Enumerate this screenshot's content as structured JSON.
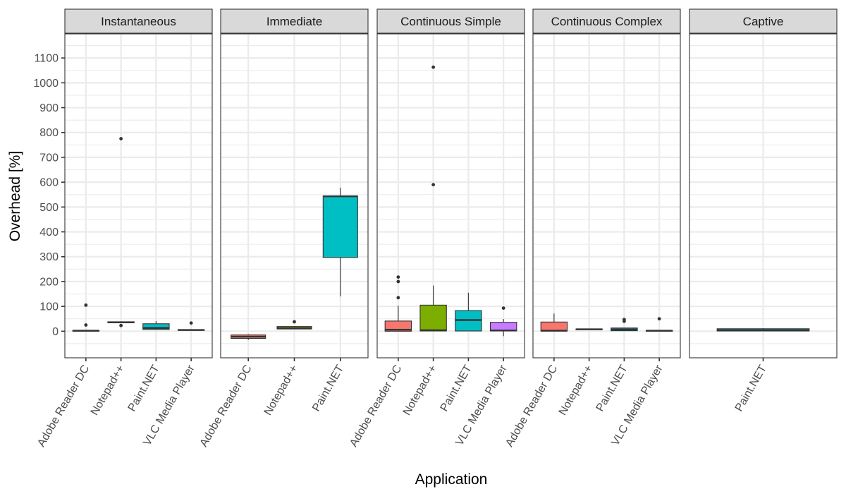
{
  "chart_data": {
    "type": "box",
    "xlabel": "Application",
    "ylabel": "Overhead [%]",
    "ylim": [
      -107,
      1197
    ],
    "yticks": [
      0,
      100,
      200,
      300,
      400,
      500,
      600,
      700,
      800,
      900,
      1000,
      1100
    ],
    "grid": true,
    "legend": "none",
    "colors": {
      "Adobe Reader DC": "#F8766D",
      "Notepad++": "#7CAE00",
      "Paint.NET": "#00BFC4",
      "VLC Media Player": "#C77CFF"
    },
    "panels": [
      {
        "title": "Instantaneous",
        "categories": [
          "Adobe Reader DC",
          "Notepad++",
          "Paint.NET",
          "VLC Media Player"
        ],
        "boxes": [
          {
            "category": "Adobe Reader DC",
            "lower": 1,
            "q1": 1,
            "median": 2,
            "q3": 3,
            "upper": 4,
            "outliers": [
              105,
              25
            ]
          },
          {
            "category": "Notepad++",
            "lower": 33,
            "q1": 34,
            "median": 36,
            "q3": 38,
            "upper": 40,
            "outliers": [
              775,
              23
            ]
          },
          {
            "category": "Paint.NET",
            "lower": 5,
            "q1": 7,
            "median": 13,
            "q3": 30,
            "upper": 41,
            "outliers": []
          },
          {
            "category": "VLC Media Player",
            "lower": 3,
            "q1": 4,
            "median": 5,
            "q3": 6,
            "upper": 7,
            "outliers": [
              33
            ]
          }
        ]
      },
      {
        "title": "Immediate",
        "categories": [
          "Adobe Reader DC",
          "Notepad++",
          "Paint.NET"
        ],
        "boxes": [
          {
            "category": "Adobe Reader DC",
            "lower": -35,
            "q1": -29,
            "median": -22,
            "q3": -15,
            "upper": -12,
            "outliers": []
          },
          {
            "category": "Notepad++",
            "lower": 9,
            "q1": 9,
            "median": 12,
            "q3": 19,
            "upper": 19,
            "outliers": [
              38
            ]
          },
          {
            "category": "Paint.NET",
            "lower": 140,
            "q1": 297,
            "median": 543,
            "q3": 545,
            "upper": 578,
            "outliers": []
          }
        ]
      },
      {
        "title": "Continuous Simple",
        "categories": [
          "Adobe Reader DC",
          "Notepad++",
          "Paint.NET",
          "VLC Media Player"
        ],
        "boxes": [
          {
            "category": "Adobe Reader DC",
            "lower": 0,
            "q1": 0,
            "median": 6,
            "q3": 41,
            "upper": 103,
            "outliers": [
              218,
              200,
              135
            ]
          },
          {
            "category": "Notepad++",
            "lower": 0,
            "q1": 1,
            "median": 4,
            "q3": 105,
            "upper": 184,
            "outliers": [
              1063,
              590
            ]
          },
          {
            "category": "Paint.NET",
            "lower": 0,
            "q1": 1,
            "median": 45,
            "q3": 83,
            "upper": 155,
            "outliers": []
          },
          {
            "category": "VLC Media Player",
            "lower": -20,
            "q1": 1,
            "median": 3,
            "q3": 36,
            "upper": 49,
            "outliers": [
              93
            ]
          }
        ]
      },
      {
        "title": "Continuous Complex",
        "categories": [
          "Adobe Reader DC",
          "Notepad++",
          "Paint.NET",
          "VLC Media Player"
        ],
        "boxes": [
          {
            "category": "Adobe Reader DC",
            "lower": 0,
            "q1": 1,
            "median": 2,
            "q3": 37,
            "upper": 71,
            "outliers": []
          },
          {
            "category": "Notepad++",
            "lower": 6,
            "q1": 7,
            "median": 8,
            "q3": 9,
            "upper": 10,
            "outliers": []
          },
          {
            "category": "Paint.NET",
            "lower": 1,
            "q1": 2,
            "median": 7,
            "q3": 13,
            "upper": 14,
            "outliers": [
              47,
              40
            ]
          },
          {
            "category": "VLC Media Player",
            "lower": 1,
            "q1": 1,
            "median": 2,
            "q3": 3,
            "upper": 3,
            "outliers": [
              50
            ]
          }
        ]
      },
      {
        "title": "Captive",
        "categories": [
          "Paint.NET"
        ],
        "boxes": [
          {
            "category": "Paint.NET",
            "lower": 0,
            "q1": 1,
            "median": 4,
            "q3": 10,
            "upper": 12,
            "outliers": []
          }
        ]
      }
    ]
  }
}
